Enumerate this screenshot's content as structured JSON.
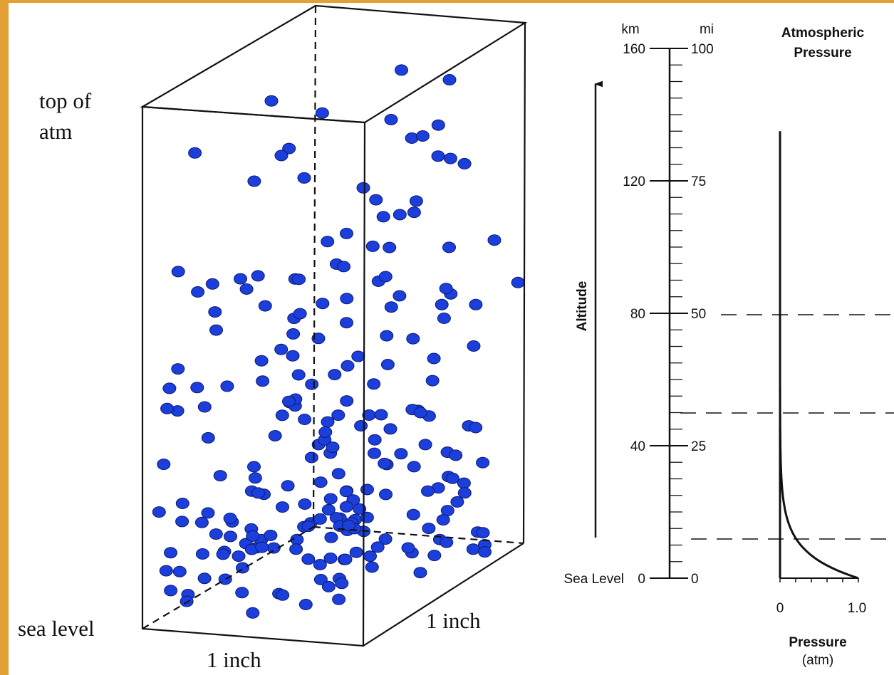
{
  "box": {
    "top_label_line1": "top of",
    "top_label_line2": "atm",
    "bottom_label": "sea level",
    "width_label_front": "1 inch",
    "width_label_side": "1 inch"
  },
  "altitude_scale": {
    "km_header": "km",
    "mi_header": "mi",
    "axis_title": "Altitude",
    "sea_level_label": "Sea Level",
    "km_ticks": [
      "160",
      "120",
      "80",
      "40",
      "0"
    ],
    "mi_ticks": [
      "100",
      "75",
      "50",
      "25",
      "0"
    ]
  },
  "pressure_panel": {
    "title_line1": "Atmospheric",
    "title_line2": "Pressure",
    "x_ticks": [
      "0",
      "1.0"
    ],
    "axis_title": "Pressure",
    "axis_unit": "(atm)"
  }
}
